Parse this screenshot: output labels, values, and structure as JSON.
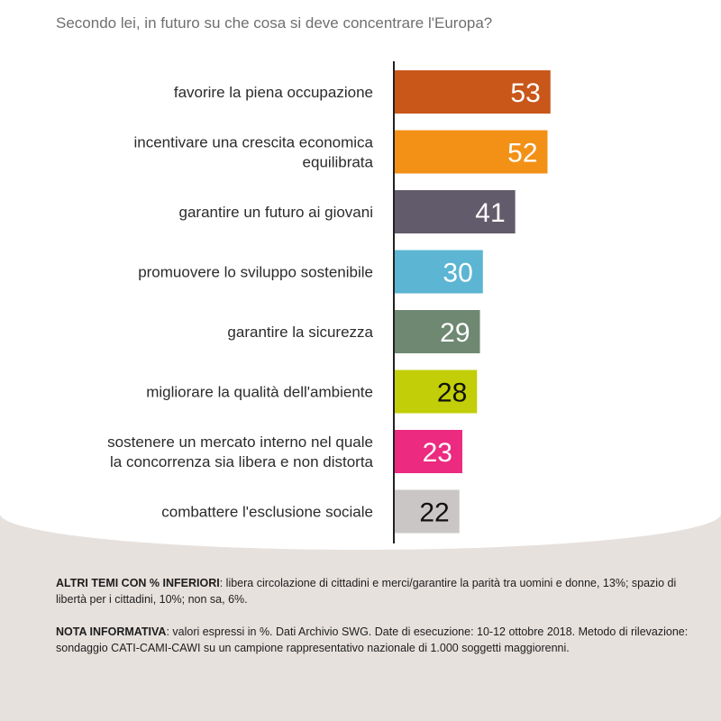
{
  "question": "Secondo lei, in futuro su che cosa si deve concentrare l'Europa?",
  "chart_data": {
    "type": "bar",
    "orientation": "horizontal",
    "categories": [
      [
        "favorire la piena occupazione"
      ],
      [
        "incentivare una crescita economica",
        "equilibrata"
      ],
      [
        "garantire un futuro ai giovani"
      ],
      [
        "promuovere lo sviluppo sostenibile"
      ],
      [
        "garantire la sicurezza"
      ],
      [
        "migliorare la qualità dell'ambiente"
      ],
      [
        "sostenere un mercato interno nel quale",
        "la concorrenza sia libera e non distorta"
      ],
      [
        "combattere l'esclusione sociale"
      ]
    ],
    "values": [
      53,
      52,
      41,
      30,
      29,
      28,
      23,
      22
    ],
    "colors": [
      "#c9571a",
      "#f39117",
      "#625b6b",
      "#5bb5d3",
      "#6e8872",
      "#c2ce07",
      "#eb2a80",
      "#cac6c5"
    ],
    "label_colors": [
      "#ffffff",
      "#ffffff",
      "#ffffff",
      "#ffffff",
      "#ffffff",
      "#111111",
      "#ffffff",
      "#111111"
    ],
    "grid": false,
    "legend": "none"
  },
  "notes": {
    "altri_title": "ALTRI TEMI CON % INFERIORI",
    "altri_text": ": libera circolazione di cittadini e merci/garantire la parità tra uomini e donne, 13%; spazio di libertà per i cittadini, 10%; non sa, 6%.",
    "nota_title": "NOTA INFORMATIVA",
    "nota_text": ": valori espressi in %. Dati Archivio SWG. Date di esecuzione: 10-12 ottobre 2018. Metodo di rilevazione: sondaggio CATI-CAMI-CAWI su un campione rappresentativo nazionale di 1.000 soggetti maggiorenni."
  }
}
